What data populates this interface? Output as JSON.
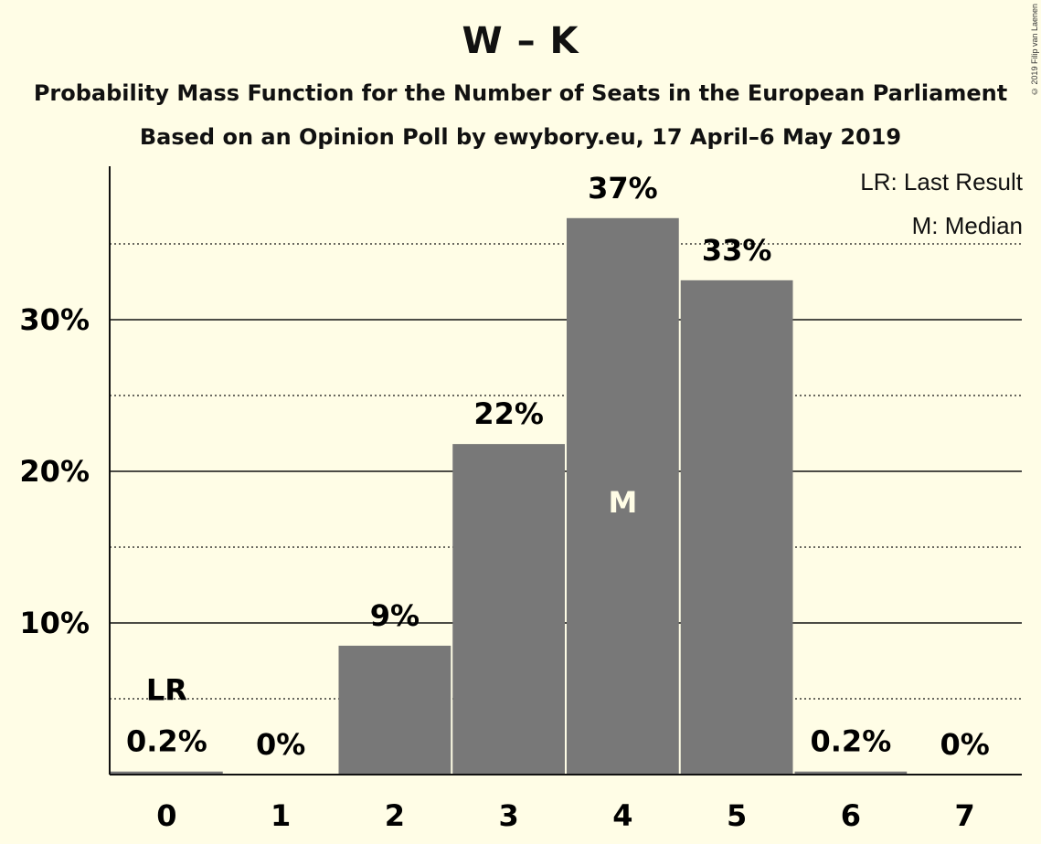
{
  "chart_data": {
    "type": "bar",
    "title": "W – K",
    "subtitle": "Probability Mass Function for the Number of Seats in the European Parliament",
    "subtitle2": "Based on an Opinion Poll by ewybory.eu, 17 April–6 May 2019",
    "copyright": "© 2019 Filip van Laenen",
    "categories": [
      "0",
      "1",
      "2",
      "3",
      "4",
      "5",
      "6",
      "7"
    ],
    "values": [
      0.2,
      0,
      8.5,
      21.8,
      36.7,
      32.6,
      0.2,
      0
    ],
    "data_labels": [
      "0.2%",
      "0%",
      "9%",
      "22%",
      "37%",
      "33%",
      "0.2%",
      "0%"
    ],
    "ylim": [
      0,
      40
    ],
    "yticks": [
      10,
      20,
      30
    ],
    "ytick_labels": [
      "10%",
      "20%",
      "30%"
    ],
    "minor_gridlines": [
      5,
      15,
      25,
      35
    ],
    "last_result_index": 0,
    "last_result_marker": "LR",
    "median_index": 4,
    "median_marker": "M",
    "legend": [
      "LR: Last Result",
      "M: Median"
    ],
    "legend_position": "top-right",
    "bar_color": "#787878",
    "background_color": "#fffde6"
  }
}
